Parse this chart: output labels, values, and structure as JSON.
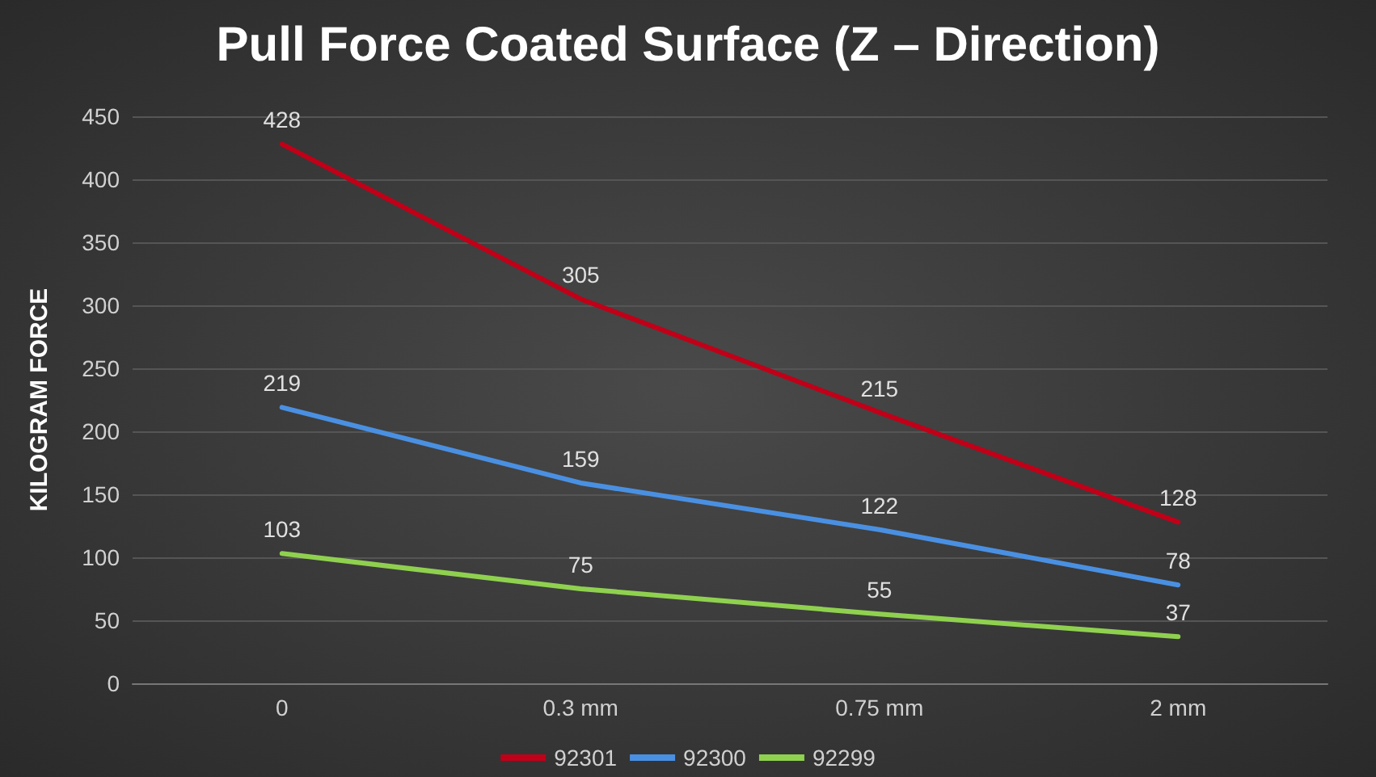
{
  "chart_data": {
    "type": "line",
    "title": "Pull Force Coated Surface (Z – Direction)",
    "ylabel": "KILOGRAM FORCE",
    "categories": [
      "0",
      "0.3 mm",
      "0.75 mm",
      "2 mm"
    ],
    "series": [
      {
        "name": "92301",
        "color": "#c00018",
        "values": [
          428,
          305,
          215,
          128
        ]
      },
      {
        "name": "92300",
        "color": "#4a90e2",
        "values": [
          219,
          159,
          122,
          78
        ]
      },
      {
        "name": "92299",
        "color": "#8fd14f",
        "values": [
          103,
          75,
          55,
          37
        ]
      }
    ],
    "ylim": [
      0,
      450
    ],
    "yticks": [
      0,
      50,
      100,
      150,
      200,
      250,
      300,
      350,
      400,
      450
    ],
    "grid": "y",
    "legend": "bottom",
    "data_labels": true,
    "marker": "none",
    "line_style": "solid"
  }
}
